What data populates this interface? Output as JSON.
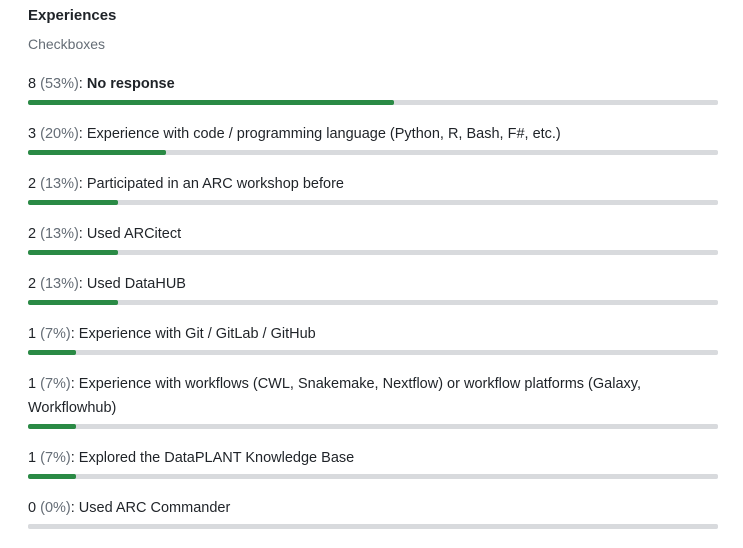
{
  "question": {
    "title": "Experiences",
    "type_label": "Checkboxes"
  },
  "colors": {
    "bar_fill": "#2a8a45",
    "bar_track": "#d8dadd",
    "percent_text": "#656d76"
  },
  "options": [
    {
      "count": "8",
      "percent": "(53%)",
      "label": "No response",
      "fraction": 0.53
    },
    {
      "count": "3",
      "percent": "(20%)",
      "label": "Experience with code / programming language (Python, R, Bash, F#, etc.)",
      "fraction": 0.2
    },
    {
      "count": "2",
      "percent": "(13%)",
      "label": "Participated in an ARC workshop before",
      "fraction": 0.13
    },
    {
      "count": "2",
      "percent": "(13%)",
      "label": "Used ARCitect",
      "fraction": 0.13
    },
    {
      "count": "2",
      "percent": "(13%)",
      "label": "Used DataHUB",
      "fraction": 0.13
    },
    {
      "count": "1",
      "percent": "(7%)",
      "label": "Experience with Git / GitLab / GitHub",
      "fraction": 0.07
    },
    {
      "count": "1",
      "percent": "(7%)",
      "label": "Experience with workflows (CWL, Snakemake, Nextflow) or workflow platforms (Galaxy, Workflowhub)",
      "fraction": 0.07
    },
    {
      "count": "1",
      "percent": "(7%)",
      "label": "Explored the DataPLANT Knowledge Base",
      "fraction": 0.07
    },
    {
      "count": "0",
      "percent": "(0%)",
      "label": "Used ARC Commander",
      "fraction": 0.0
    }
  ]
}
